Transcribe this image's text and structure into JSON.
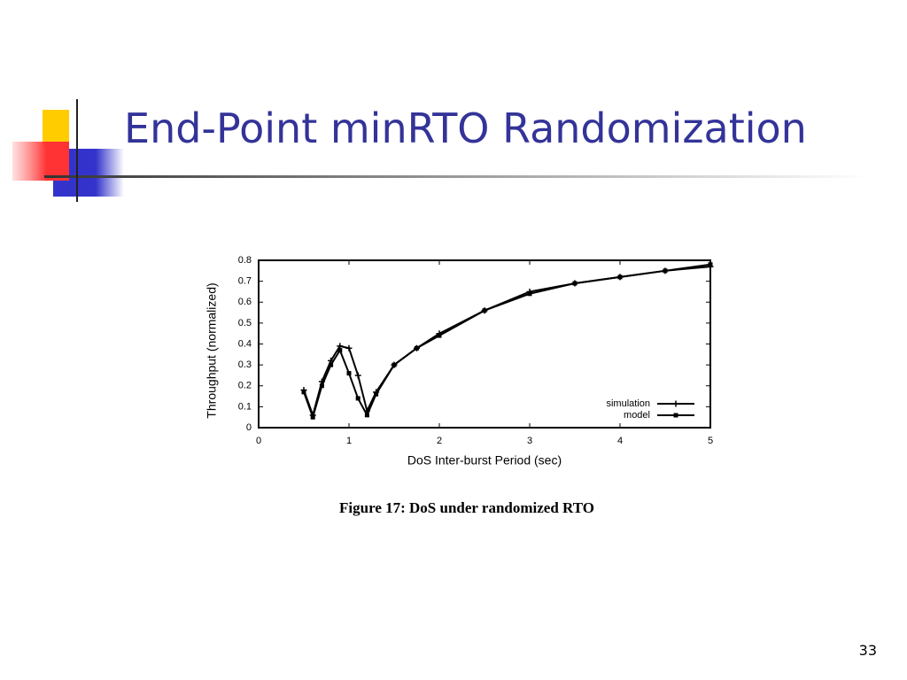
{
  "slide": {
    "title": "End-Point minRTO Randomization",
    "page_number": "33"
  },
  "chart_data": {
    "type": "line",
    "x_label": "DoS Inter-burst Period (sec)",
    "y_label": "Throughput (normalized)",
    "caption": "Figure 17: DoS under randomized RTO",
    "x": [
      0.5,
      0.6,
      0.7,
      0.8,
      0.9,
      1.0,
      1.1,
      1.2,
      1.3,
      1.5,
      1.75,
      2,
      2.5,
      3,
      3.5,
      4,
      4.5,
      5
    ],
    "series": [
      {
        "name": "simulation",
        "color": "#000000",
        "marker": "plus",
        "values": [
          0.18,
          0.06,
          0.22,
          0.32,
          0.39,
          0.38,
          0.25,
          0.08,
          0.17,
          0.3,
          0.38,
          0.45,
          0.56,
          0.65,
          0.69,
          0.72,
          0.75,
          0.77
        ]
      },
      {
        "name": "model",
        "color": "#000000",
        "marker": "square",
        "values": [
          0.17,
          0.05,
          0.2,
          0.3,
          0.37,
          0.26,
          0.14,
          0.06,
          0.16,
          0.3,
          0.38,
          0.44,
          0.56,
          0.64,
          0.69,
          0.72,
          0.75,
          0.78
        ]
      }
    ],
    "xlim": [
      0,
      5
    ],
    "xticks": [
      0,
      1,
      2,
      3,
      4,
      5
    ],
    "ylim": [
      0,
      0.8
    ],
    "yticks": [
      0,
      0.1,
      0.2,
      0.3,
      0.4,
      0.5,
      0.6,
      0.7,
      0.8
    ],
    "legend": "lower right"
  }
}
